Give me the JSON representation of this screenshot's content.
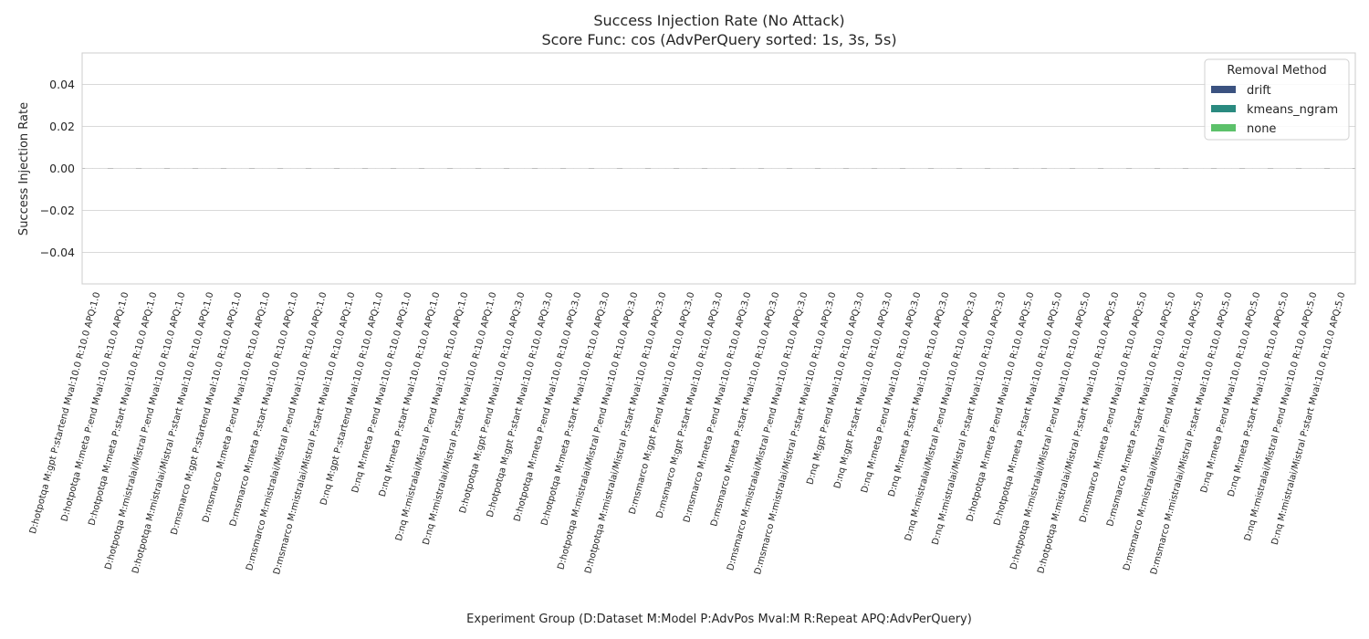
{
  "chart_data": {
    "type": "bar",
    "title": "Success Injection Rate (No Attack)",
    "subtitle": "Score Func: cos (AdvPerQuery sorted: 1s, 3s, 5s)",
    "xlabel": "Experiment Group (D:Dataset M:Model P:AdvPos Mval:M R:Repeat APQ:AdvPerQuery)",
    "ylabel": "Success Injection Rate",
    "ylim": [
      -0.055,
      0.055
    ],
    "yticks": [
      "0.04",
      "0.02",
      "0.00",
      "−0.02",
      "−0.04"
    ],
    "ytick_values": [
      0.04,
      0.02,
      0.0,
      -0.02,
      -0.04
    ],
    "grid": true,
    "legend": {
      "title": "Removal Method",
      "placement": "top-right",
      "entries": [
        {
          "name": "drift",
          "color": "#3b5280"
        },
        {
          "name": "kmeans_ngram",
          "color": "#2a8a80"
        },
        {
          "name": "none",
          "color": "#5cc16a"
        }
      ]
    },
    "categories": [
      "D:hotpotqa M:gpt P:startend Mval:10.0 R:10.0 APQ:1.0",
      "D:hotpotqa M:meta P:end Mval:10.0 R:10.0 APQ:1.0",
      "D:hotpotqa M:meta P:start Mval:10.0 R:10.0 APQ:1.0",
      "D:hotpotqa M:mistralai/Mistral P:end Mval:10.0 R:10.0 APQ:1.0",
      "D:hotpotqa M:mistralai/Mistral P:start Mval:10.0 R:10.0 APQ:1.0",
      "D:msmarco M:gpt P:startend Mval:10.0 R:10.0 APQ:1.0",
      "D:msmarco M:meta P:end Mval:10.0 R:10.0 APQ:1.0",
      "D:msmarco M:meta P:start Mval:10.0 R:10.0 APQ:1.0",
      "D:msmarco M:mistralai/Mistral P:end Mval:10.0 R:10.0 APQ:1.0",
      "D:msmarco M:mistralai/Mistral P:start Mval:10.0 R:10.0 APQ:1.0",
      "D:nq M:gpt P:startend Mval:10.0 R:10.0 APQ:1.0",
      "D:nq M:meta P:end Mval:10.0 R:10.0 APQ:1.0",
      "D:nq M:meta P:start Mval:10.0 R:10.0 APQ:1.0",
      "D:nq M:mistralai/Mistral P:end Mval:10.0 R:10.0 APQ:1.0",
      "D:nq M:mistralai/Mistral P:start Mval:10.0 R:10.0 APQ:1.0",
      "D:hotpotqa M:gpt P:end Mval:10.0 R:10.0 APQ:3.0",
      "D:hotpotqa M:gpt P:start Mval:10.0 R:10.0 APQ:3.0",
      "D:hotpotqa M:meta P:end Mval:10.0 R:10.0 APQ:3.0",
      "D:hotpotqa M:meta P:start Mval:10.0 R:10.0 APQ:3.0",
      "D:hotpotqa M:mistralai/Mistral P:end Mval:10.0 R:10.0 APQ:3.0",
      "D:hotpotqa M:mistralai/Mistral P:start Mval:10.0 R:10.0 APQ:3.0",
      "D:msmarco M:gpt P:end Mval:10.0 R:10.0 APQ:3.0",
      "D:msmarco M:gpt P:start Mval:10.0 R:10.0 APQ:3.0",
      "D:msmarco M:meta P:end Mval:10.0 R:10.0 APQ:3.0",
      "D:msmarco M:meta P:start Mval:10.0 R:10.0 APQ:3.0",
      "D:msmarco M:mistralai/Mistral P:end Mval:10.0 R:10.0 APQ:3.0",
      "D:msmarco M:mistralai/Mistral P:start Mval:10.0 R:10.0 APQ:3.0",
      "D:nq M:gpt P:end Mval:10.0 R:10.0 APQ:3.0",
      "D:nq M:gpt P:start Mval:10.0 R:10.0 APQ:3.0",
      "D:nq M:meta P:end Mval:10.0 R:10.0 APQ:3.0",
      "D:nq M:meta P:start Mval:10.0 R:10.0 APQ:3.0",
      "D:nq M:mistralai/Mistral P:end Mval:10.0 R:10.0 APQ:3.0",
      "D:nq M:mistralai/Mistral P:start Mval:10.0 R:10.0 APQ:3.0",
      "D:hotpotqa M:meta P:end Mval:10.0 R:10.0 APQ:5.0",
      "D:hotpotqa M:meta P:start Mval:10.0 R:10.0 APQ:5.0",
      "D:hotpotqa M:mistralai/Mistral P:end Mval:10.0 R:10.0 APQ:5.0",
      "D:hotpotqa M:mistralai/Mistral P:start Mval:10.0 R:10.0 APQ:5.0",
      "D:msmarco M:meta P:end Mval:10.0 R:10.0 APQ:5.0",
      "D:msmarco M:meta P:start Mval:10.0 R:10.0 APQ:5.0",
      "D:msmarco M:mistralai/Mistral P:end Mval:10.0 R:10.0 APQ:5.0",
      "D:msmarco M:mistralai/Mistral P:start Mval:10.0 R:10.0 APQ:5.0",
      "D:nq M:meta P:end Mval:10.0 R:10.0 APQ:5.0",
      "D:nq M:meta P:start Mval:10.0 R:10.0 APQ:5.0",
      "D:nq M:mistralai/Mistral P:end Mval:10.0 R:10.0 APQ:5.0",
      "D:nq M:mistralai/Mistral P:start Mval:10.0 R:10.0 APQ:5.0"
    ],
    "series": [
      {
        "name": "drift",
        "values": [
          0,
          0,
          0,
          0,
          0,
          0,
          0,
          0,
          0,
          0,
          0,
          0,
          0,
          0,
          0,
          0,
          0,
          0,
          0,
          0,
          0,
          0,
          0,
          0,
          0,
          0,
          0,
          0,
          0,
          0,
          0,
          0,
          0,
          0,
          0,
          0,
          0,
          0,
          0,
          0,
          0,
          0,
          0,
          0,
          0
        ]
      },
      {
        "name": "kmeans_ngram",
        "values": [
          0,
          0,
          0,
          0,
          0,
          0,
          0,
          0,
          0,
          0,
          0,
          0,
          0,
          0,
          0,
          0,
          0,
          0,
          0,
          0,
          0,
          0,
          0,
          0,
          0,
          0,
          0,
          0,
          0,
          0,
          0,
          0,
          0,
          0,
          0,
          0,
          0,
          0,
          0,
          0,
          0,
          0,
          0,
          0,
          0
        ]
      },
      {
        "name": "none",
        "values": [
          0,
          0,
          0,
          0,
          0,
          0,
          0,
          0,
          0,
          0,
          0,
          0,
          0,
          0,
          0,
          0,
          0,
          0,
          0,
          0,
          0,
          0,
          0,
          0,
          0,
          0,
          0,
          0,
          0,
          0,
          0,
          0,
          0,
          0,
          0,
          0,
          0,
          0,
          0,
          0,
          0,
          0,
          0,
          0,
          0
        ]
      }
    ]
  }
}
